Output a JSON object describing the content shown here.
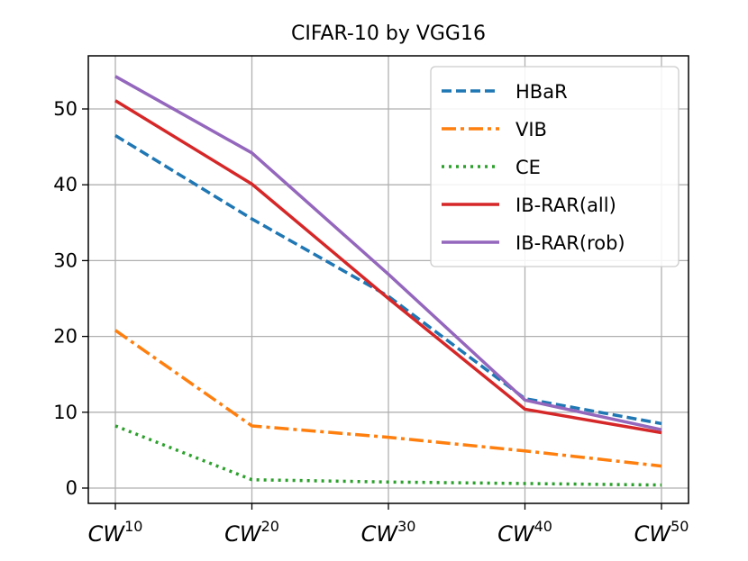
{
  "chart_data": {
    "type": "line",
    "title": "CIFAR-10 by VGG16",
    "xlabel": "",
    "ylabel": "",
    "categories": [
      {
        "base": "CW",
        "sup": "10"
      },
      {
        "base": "CW",
        "sup": "20"
      },
      {
        "base": "CW",
        "sup": "30"
      },
      {
        "base": "CW",
        "sup": "40"
      },
      {
        "base": "CW",
        "sup": "50"
      }
    ],
    "yticks": [
      0,
      10,
      20,
      30,
      40,
      50
    ],
    "ylim": [
      -2,
      57
    ],
    "grid": true,
    "legend_position": "top-right",
    "series": [
      {
        "name": "HBaR",
        "color": "#1f77b4",
        "style": "dashed",
        "values": [
          46.5,
          35.5,
          25.3,
          11.8,
          8.5
        ]
      },
      {
        "name": "VIB",
        "color": "#ff7f0e",
        "style": "dashdot",
        "values": [
          20.8,
          8.2,
          6.7,
          4.9,
          2.9
        ]
      },
      {
        "name": "CE",
        "color": "#2ca02c",
        "style": "dotted",
        "values": [
          8.2,
          1.1,
          0.8,
          0.6,
          0.4
        ]
      },
      {
        "name": "IB-RAR(all)",
        "color": "#d62728",
        "style": "solid",
        "values": [
          51.1,
          40.1,
          25.0,
          10.4,
          7.3
        ]
      },
      {
        "name": "IB-RAR(rob)",
        "color": "#9467bd",
        "style": "solid",
        "values": [
          54.3,
          44.2,
          28.2,
          11.6,
          7.7
        ]
      }
    ]
  }
}
